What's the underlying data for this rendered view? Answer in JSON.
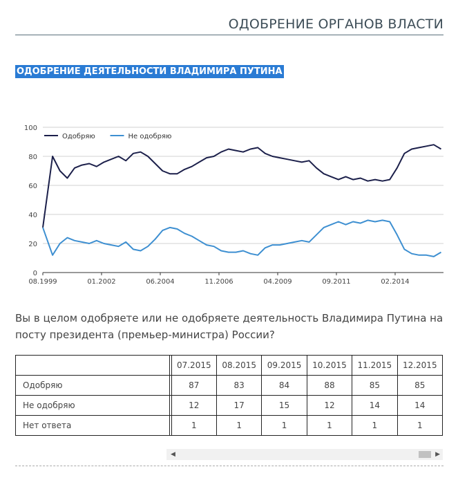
{
  "header": {
    "title": "ОДОБРЕНИЕ ОРГАНОВ ВЛАСТИ"
  },
  "section_title": "ОДОБРЕНИЕ ДЕЯТЕЛЬНОСТИ ВЛАДИМИРА ПУТИНА",
  "question": "Вы в целом одобряете или не одобряете деятельность Владимира Путина на посту президента (премьер-министра) России?",
  "colors": {
    "approve": "#1b1f4a",
    "disapprove": "#3d8fd1",
    "highlight": "#2a7bd4"
  },
  "chart_data": {
    "type": "line",
    "title": "",
    "xlabel": "",
    "ylabel": "",
    "ylim": [
      0,
      100
    ],
    "yticks": [
      0,
      20,
      40,
      60,
      80,
      100
    ],
    "xtick_labels": [
      "08.1999",
      "01.2002",
      "06.2004",
      "11.2006",
      "04.2009",
      "09.2011",
      "02.2014"
    ],
    "legend_position": "top-left",
    "grid": true,
    "series": [
      {
        "name": "Одобряю",
        "color": "#1b1f4a",
        "x": [
          1999.6,
          2000.0,
          2000.3,
          2000.6,
          2000.9,
          2001.2,
          2001.5,
          2001.8,
          2002.1,
          2002.4,
          2002.7,
          2003.0,
          2003.3,
          2003.6,
          2003.9,
          2004.2,
          2004.5,
          2004.8,
          2005.1,
          2005.4,
          2005.7,
          2006.0,
          2006.3,
          2006.6,
          2006.9,
          2007.2,
          2007.5,
          2007.8,
          2008.1,
          2008.4,
          2008.7,
          2009.0,
          2009.3,
          2009.6,
          2009.9,
          2010.2,
          2010.5,
          2010.8,
          2011.1,
          2011.4,
          2011.7,
          2012.0,
          2012.3,
          2012.6,
          2012.9,
          2013.2,
          2013.5,
          2013.8,
          2014.1,
          2014.4,
          2014.7,
          2015.0,
          2015.3,
          2015.6,
          2015.9
        ],
        "values": [
          31,
          80,
          70,
          65,
          72,
          74,
          75,
          73,
          76,
          78,
          80,
          77,
          82,
          83,
          80,
          75,
          70,
          68,
          68,
          71,
          73,
          76,
          79,
          80,
          83,
          85,
          84,
          83,
          85,
          86,
          82,
          80,
          79,
          78,
          77,
          76,
          77,
          72,
          68,
          66,
          64,
          66,
          64,
          65,
          63,
          64,
          63,
          64,
          72,
          82,
          85,
          86,
          87,
          88,
          85
        ]
      },
      {
        "name": "Не одобряю",
        "color": "#3d8fd1",
        "x": [
          1999.6,
          2000.0,
          2000.3,
          2000.6,
          2000.9,
          2001.2,
          2001.5,
          2001.8,
          2002.1,
          2002.4,
          2002.7,
          2003.0,
          2003.3,
          2003.6,
          2003.9,
          2004.2,
          2004.5,
          2004.8,
          2005.1,
          2005.4,
          2005.7,
          2006.0,
          2006.3,
          2006.6,
          2006.9,
          2007.2,
          2007.5,
          2007.8,
          2008.1,
          2008.4,
          2008.7,
          2009.0,
          2009.3,
          2009.6,
          2009.9,
          2010.2,
          2010.5,
          2010.8,
          2011.1,
          2011.4,
          2011.7,
          2012.0,
          2012.3,
          2012.6,
          2012.9,
          2013.2,
          2013.5,
          2013.8,
          2014.1,
          2014.4,
          2014.7,
          2015.0,
          2015.3,
          2015.6,
          2015.9
        ],
        "values": [
          31,
          12,
          20,
          24,
          22,
          21,
          20,
          22,
          20,
          19,
          18,
          21,
          16,
          15,
          18,
          23,
          29,
          31,
          30,
          27,
          25,
          22,
          19,
          18,
          15,
          14,
          14,
          15,
          13,
          12,
          17,
          19,
          19,
          20,
          21,
          22,
          21,
          26,
          31,
          33,
          35,
          33,
          35,
          34,
          36,
          35,
          36,
          35,
          26,
          16,
          13,
          12,
          12,
          11,
          14
        ]
      }
    ]
  },
  "table": {
    "columns": [
      "07.2015",
      "08.2015",
      "09.2015",
      "10.2015",
      "11.2015",
      "12.2015"
    ],
    "rows": [
      {
        "label": "Одобряю",
        "values": [
          "87",
          "83",
          "84",
          "88",
          "85",
          "85"
        ]
      },
      {
        "label": "Не одобряю",
        "values": [
          "12",
          "17",
          "15",
          "12",
          "14",
          "14"
        ]
      },
      {
        "label": "Нет ответа",
        "values": [
          "1",
          "1",
          "1",
          "1",
          "1",
          "1"
        ]
      }
    ]
  },
  "scrollbar": {
    "left_arrow": "◀",
    "right_arrow": "▶"
  }
}
